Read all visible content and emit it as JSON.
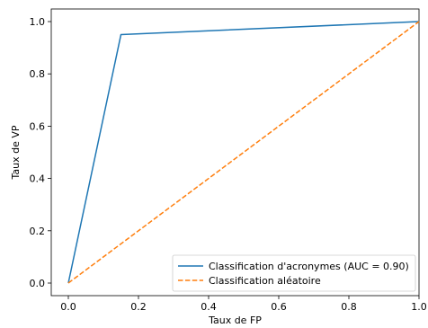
{
  "chart_data": {
    "type": "line",
    "title": "",
    "xlabel": "Taux de FP",
    "ylabel": "Taux de VP",
    "xlim": [
      0.0,
      1.0
    ],
    "ylim": [
      0.0,
      1.0
    ],
    "x_ticks": [
      "0.0",
      "0.2",
      "0.4",
      "0.6",
      "0.8",
      "1.0"
    ],
    "y_ticks": [
      "0.0",
      "0.2",
      "0.4",
      "0.6",
      "0.8",
      "1.0"
    ],
    "grid": false,
    "legend_position": "lower-right",
    "series": [
      {
        "name": "Classification d'acronymes (AUC = 0.90)",
        "color": "#1f77b4",
        "style": "solid",
        "x": [
          0.0,
          0.15,
          1.0
        ],
        "y": [
          0.0,
          0.95,
          1.0
        ]
      },
      {
        "name": "Classification aléatoire",
        "color": "#ff7f0e",
        "style": "dashed",
        "x": [
          0.0,
          1.0
        ],
        "y": [
          0.0,
          1.0
        ]
      }
    ]
  }
}
